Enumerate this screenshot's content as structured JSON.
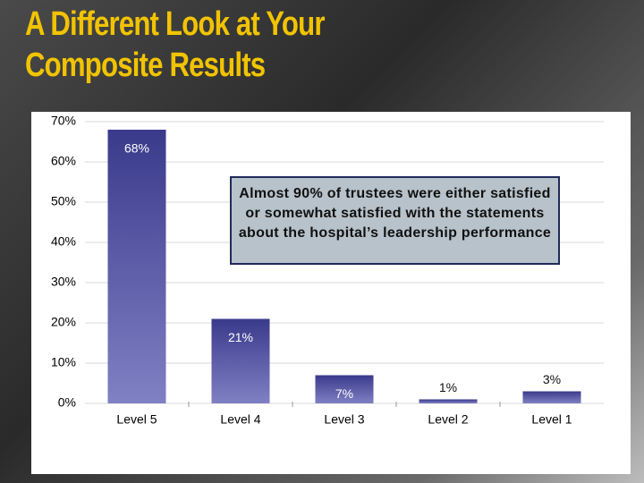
{
  "chart_data": {
    "type": "bar",
    "title": [
      "A Different Look at Your",
      "Composite Results"
    ],
    "categories": [
      "Level 5",
      "Level 4",
      "Level 3",
      "Level 2",
      "Level 1"
    ],
    "values": [
      68,
      21,
      7,
      1,
      3
    ],
    "value_labels": [
      "68%",
      "21%",
      "7%",
      "1%",
      "3%"
    ],
    "color": "#3a3a8c",
    "ylim": [
      0,
      70
    ],
    "yticks": [
      {
        "value": 0,
        "label": "0%"
      },
      {
        "value": 10,
        "label": "10%"
      },
      {
        "value": 20,
        "label": "20%"
      },
      {
        "value": 30,
        "label": "30%"
      },
      {
        "value": 40,
        "label": "40%"
      },
      {
        "value": 50,
        "label": "50%"
      },
      {
        "value": 60,
        "label": "60%"
      },
      {
        "value": 70,
        "label": "70%"
      }
    ],
    "grid": true,
    "annotation": "Almost 90% of trustees were either satisfied or somewhat satisfied with the statements about the hospital’s leadership performance"
  }
}
